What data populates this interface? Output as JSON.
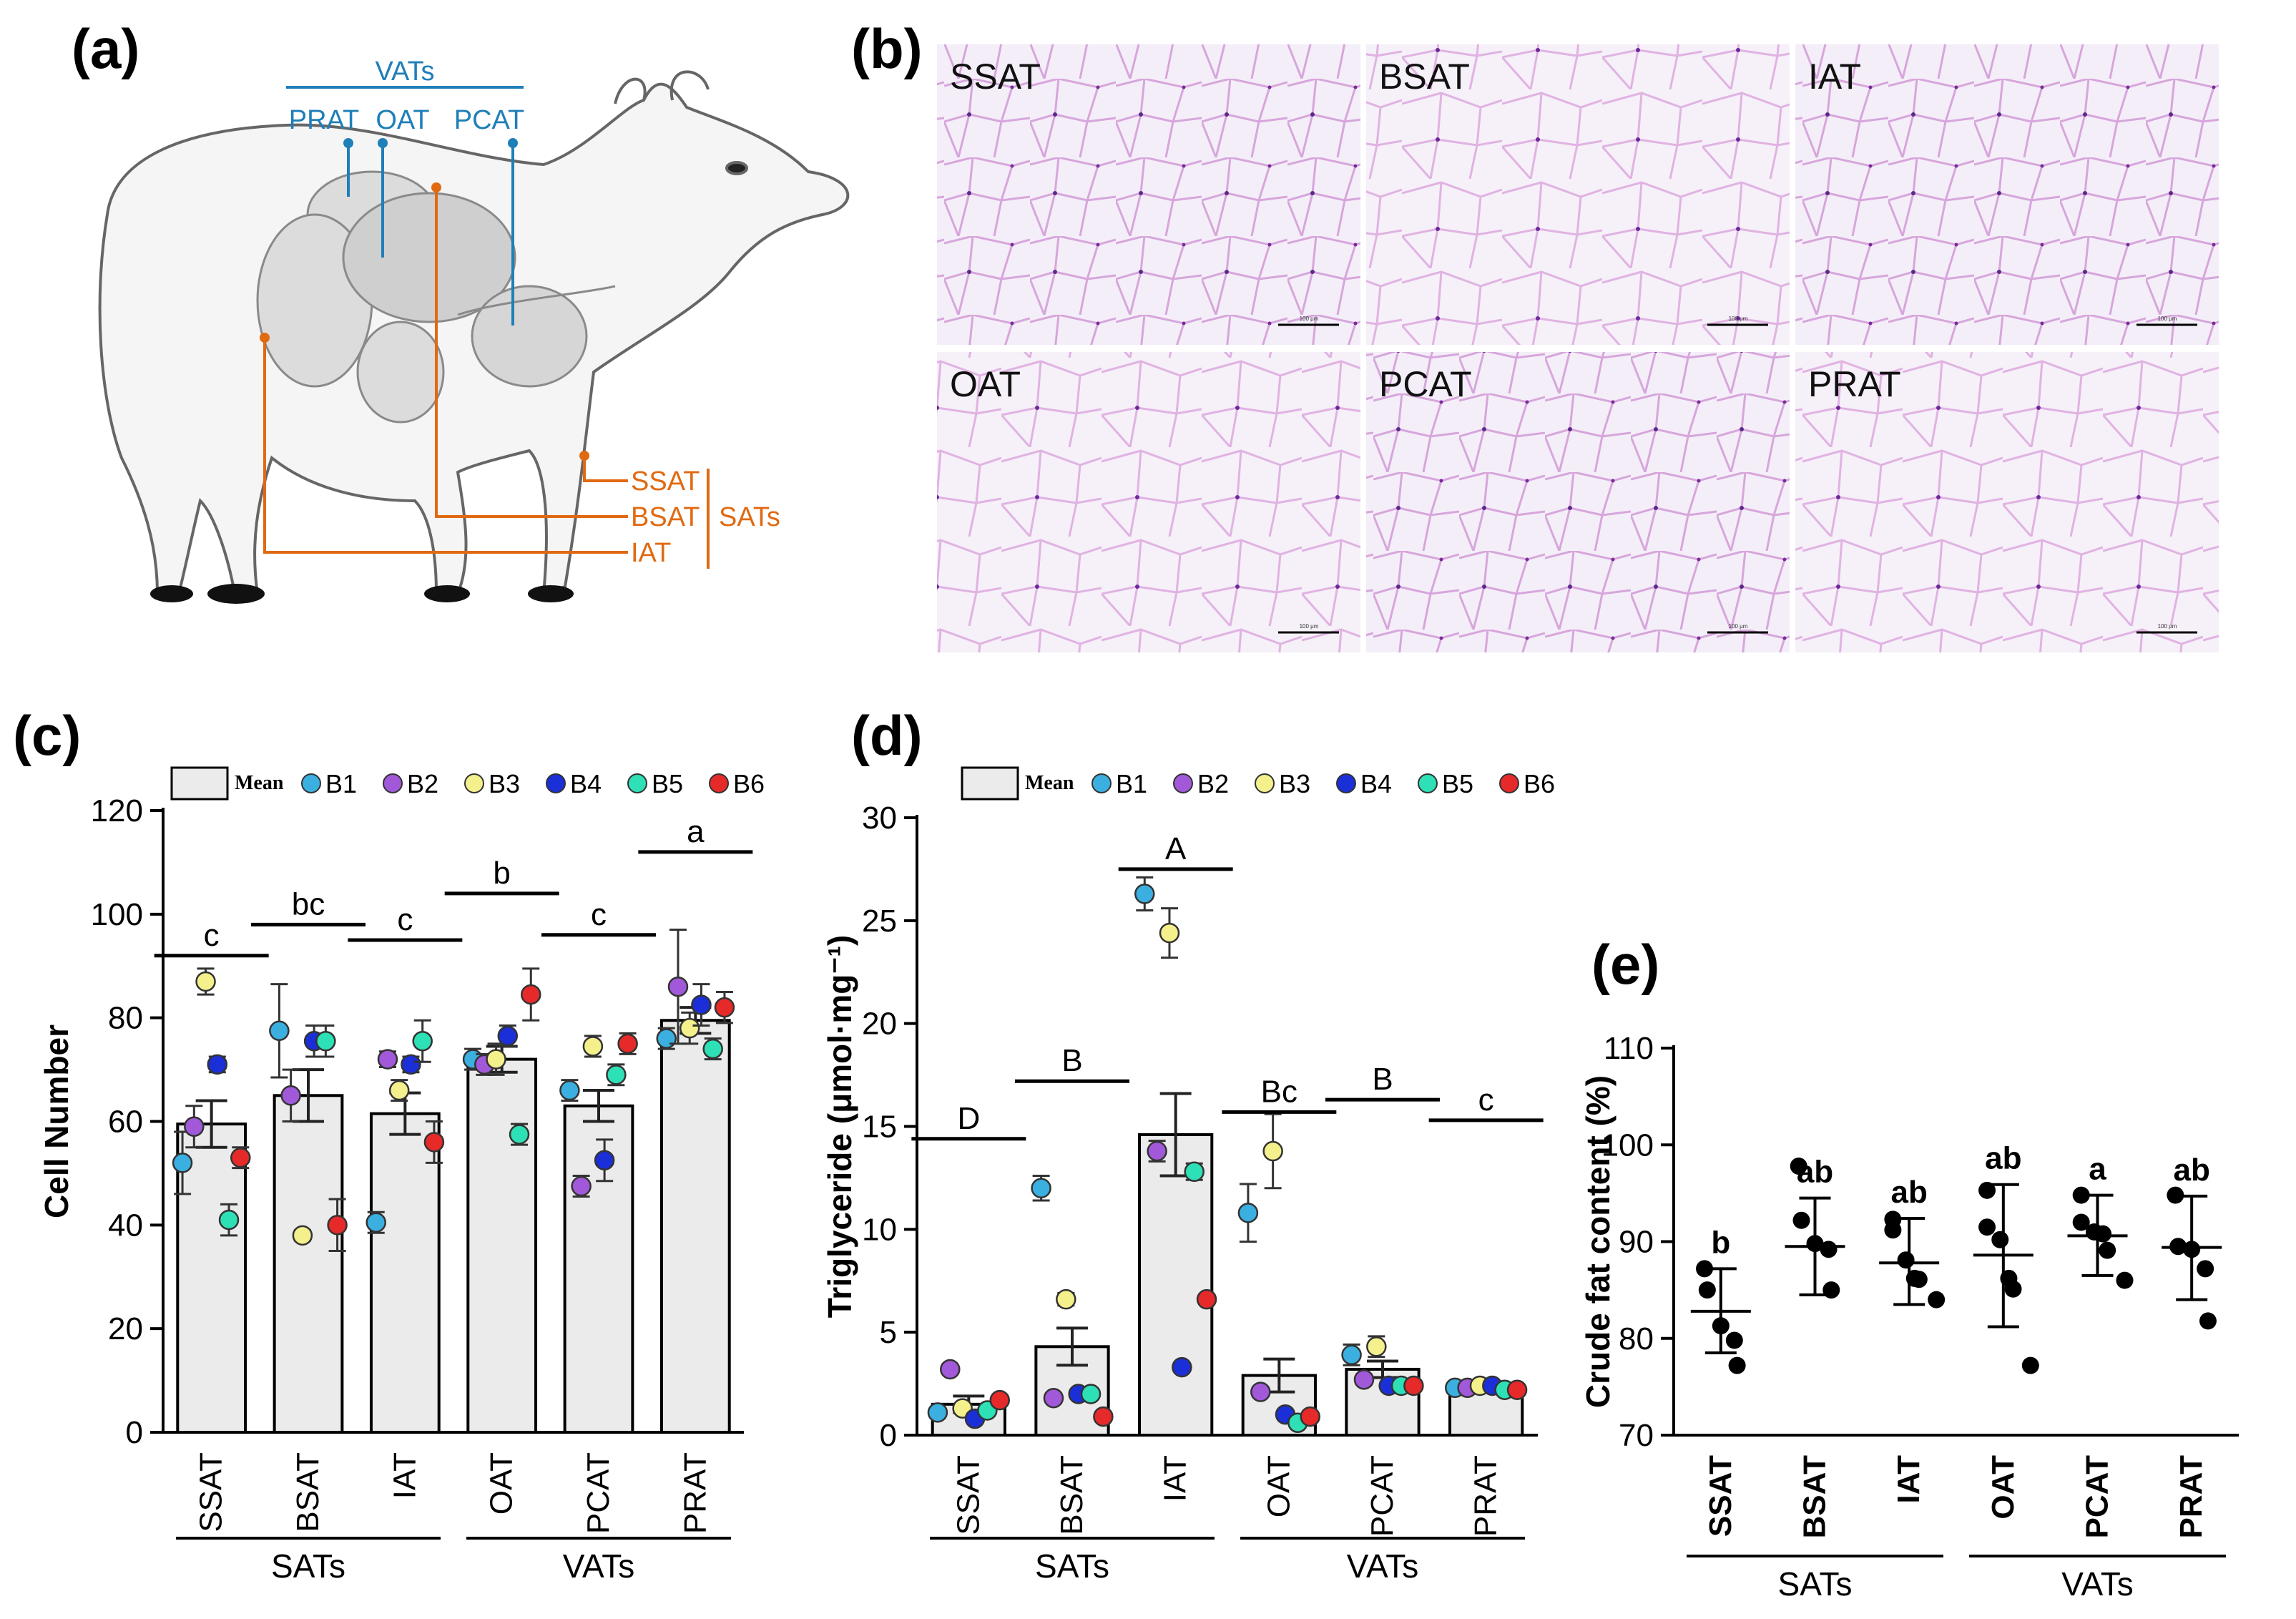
{
  "panel_labels": {
    "a": "(a)",
    "b": "(b)",
    "c": "(c)",
    "d": "(d)",
    "e": "(e)"
  },
  "panel_a": {
    "vats_label": "VATs",
    "vat_items": [
      "PRAT",
      "OAT",
      "PCAT"
    ],
    "sats_label": "SATs",
    "sat_items": [
      "SSAT",
      "BSAT",
      "IAT"
    ],
    "colors": {
      "vat": "#1f7fb8",
      "sat": "#e06a12"
    }
  },
  "panel_b": {
    "tiles": [
      "SSAT",
      "BSAT",
      "IAT",
      "OAT",
      "PCAT",
      "PRAT"
    ],
    "scale_bar": "100 μm"
  },
  "legend": {
    "mean_label": "Mean",
    "series": [
      {
        "name": "B1",
        "color": "#3bb0e0"
      },
      {
        "name": "B2",
        "color": "#a259d9"
      },
      {
        "name": "B3",
        "color": "#f4f08c"
      },
      {
        "name": "B4",
        "color": "#1b2fd8"
      },
      {
        "name": "B5",
        "color": "#2ee0b6"
      },
      {
        "name": "B6",
        "color": "#e62a2a"
      }
    ]
  },
  "chart_data": [
    {
      "id": "c",
      "type": "bar",
      "ylabel": "Cell Number",
      "ylim": [
        0,
        120
      ],
      "yticks": [
        0,
        20,
        40,
        60,
        80,
        100,
        120
      ],
      "categories": [
        "SSAT",
        "BSAT",
        "IAT",
        "OAT",
        "PCAT",
        "PRAT"
      ],
      "groups": [
        {
          "label": "SATs",
          "categories": [
            "SSAT",
            "BSAT",
            "IAT"
          ]
        },
        {
          "label": "VATs",
          "categories": [
            "OAT",
            "PCAT",
            "PRAT"
          ]
        }
      ],
      "mean": [
        59.5,
        65,
        61.5,
        72,
        63,
        79.5
      ],
      "sem": [
        4.5,
        5,
        4,
        2.5,
        3,
        2.5
      ],
      "significance": [
        "c",
        "bc",
        "c",
        "b",
        "c",
        "a"
      ],
      "sig_y": [
        92,
        98,
        95,
        104,
        96,
        112
      ],
      "series": [
        {
          "name": "B1",
          "values": [
            52,
            77.5,
            40.5,
            72,
            66,
            76
          ],
          "err": [
            6,
            9,
            2,
            2,
            2,
            2
          ]
        },
        {
          "name": "B2",
          "values": [
            59,
            65,
            72,
            71,
            47.5,
            86
          ],
          "err": [
            4,
            5,
            1.5,
            2,
            2,
            11
          ]
        },
        {
          "name": "B3",
          "values": [
            87,
            38,
            66,
            72,
            74.5,
            78
          ],
          "err": [
            2.5,
            1,
            2,
            3,
            2,
            3
          ]
        },
        {
          "name": "B4",
          "values": [
            71,
            75.5,
            71,
            76.5,
            52.5,
            82.5
          ],
          "err": [
            1.5,
            3,
            1.5,
            2,
            4,
            4
          ]
        },
        {
          "name": "B5",
          "values": [
            41,
            75.5,
            75.5,
            57.5,
            69,
            74
          ],
          "err": [
            3,
            3,
            4,
            2,
            2,
            2
          ]
        },
        {
          "name": "B6",
          "values": [
            53,
            40,
            56,
            84.5,
            75,
            82
          ],
          "err": [
            2,
            5,
            4,
            5,
            2,
            3
          ]
        }
      ]
    },
    {
      "id": "d",
      "type": "bar",
      "ylabel": "Triglyceride (μmol·mg⁻¹)",
      "ylim": [
        0,
        30
      ],
      "yticks": [
        0,
        5,
        10,
        15,
        20,
        25,
        30
      ],
      "categories": [
        "SSAT",
        "BSAT",
        "IAT",
        "OAT",
        "PCAT",
        "PRAT"
      ],
      "groups": [
        {
          "label": "SATs",
          "categories": [
            "SSAT",
            "BSAT",
            "IAT"
          ]
        },
        {
          "label": "VATs",
          "categories": [
            "OAT",
            "PCAT",
            "PRAT"
          ]
        }
      ],
      "mean": [
        1.5,
        4.3,
        14.6,
        2.9,
        3.2,
        2.3
      ],
      "sem": [
        0.4,
        0.9,
        2.0,
        0.8,
        0.4,
        0.15
      ],
      "significance": [
        "D",
        "B",
        "A",
        "Bc",
        "B",
        "c"
      ],
      "sig_y": [
        14.4,
        17.2,
        27.5,
        15.7,
        16.3,
        15.3
      ],
      "series": [
        {
          "name": "B1",
          "values": [
            1.1,
            12.0,
            26.3,
            10.8,
            3.9,
            2.3
          ],
          "err": [
            0.2,
            0.6,
            0.8,
            1.4,
            0.5,
            0.1
          ]
        },
        {
          "name": "B2",
          "values": [
            3.2,
            1.8,
            13.8,
            2.1,
            2.7,
            2.3
          ],
          "err": [
            0.2,
            0.2,
            0.5,
            0.2,
            0.2,
            0.1
          ]
        },
        {
          "name": "B3",
          "values": [
            1.3,
            6.6,
            24.4,
            13.8,
            4.3,
            2.4
          ],
          "err": [
            0.2,
            0.3,
            1.2,
            1.8,
            0.5,
            0.1
          ]
        },
        {
          "name": "B4",
          "values": [
            0.8,
            2.0,
            3.3,
            1.0,
            2.4,
            2.4
          ],
          "err": [
            0.1,
            0.2,
            0.2,
            0.2,
            0.2,
            0.1
          ]
        },
        {
          "name": "B5",
          "values": [
            1.2,
            2.0,
            12.8,
            0.6,
            2.4,
            2.2
          ],
          "err": [
            0.1,
            0.2,
            0.4,
            0.1,
            0.2,
            0.1
          ]
        },
        {
          "name": "B6",
          "values": [
            1.7,
            0.9,
            6.6,
            0.9,
            2.4,
            2.2
          ],
          "err": [
            0.1,
            0.1,
            0.2,
            0.1,
            0.2,
            0.1
          ]
        }
      ]
    },
    {
      "id": "e",
      "type": "scatter",
      "ylabel": "Crude fat content (%)",
      "ylim": [
        70,
        110
      ],
      "yticks": [
        70,
        80,
        90,
        100,
        110
      ],
      "categories": [
        "SSAT",
        "BSAT",
        "IAT",
        "OAT",
        "PCAT",
        "PRAT"
      ],
      "groups": [
        {
          "label": "SATs",
          "categories": [
            "SSAT",
            "BSAT",
            "IAT"
          ]
        },
        {
          "label": "VATs",
          "categories": [
            "OAT",
            "PCAT",
            "PRAT"
          ]
        }
      ],
      "mean": [
        82.8,
        89.5,
        87.8,
        88.6,
        90.6,
        89.4
      ],
      "sd_low": [
        78.5,
        84.5,
        83.5,
        81.2,
        86.5,
        84.0
      ],
      "sd_high": [
        87.2,
        94.5,
        92.4,
        95.9,
        94.8,
        94.7
      ],
      "significance": [
        "b",
        "ab",
        "ab",
        "ab",
        "a",
        "ab"
      ],
      "points": [
        [
          87.2,
          85.0,
          81.3,
          79.8,
          77.2
        ],
        [
          97.8,
          92.2,
          89.8,
          89.2,
          85.0
        ],
        [
          92.3,
          91.2,
          88.1,
          86.2,
          86.1,
          84.0
        ],
        [
          95.3,
          91.5,
          90.2,
          86.2,
          85.1,
          77.2
        ],
        [
          94.8,
          92.0,
          91.0,
          90.8,
          89.1,
          86.0
        ],
        [
          94.8,
          89.5,
          89.2,
          87.2,
          81.8
        ]
      ]
    }
  ]
}
